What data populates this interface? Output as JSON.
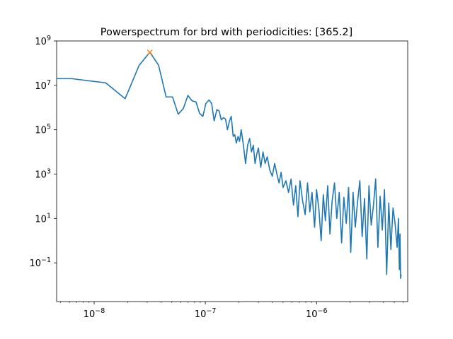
{
  "chart_data": {
    "type": "line",
    "title": "Powerspectrum for brd with periodicities: [365.2]",
    "xlabel": "",
    "ylabel": "",
    "x_scale": "log",
    "y_scale": "log",
    "xlim": [
      4.6e-09,
      6.6e-06
    ],
    "ylim": [
      0.0018,
      1000000000.0
    ],
    "grid": false,
    "x_ticks": [
      {
        "value": 1e-08,
        "base": "10",
        "exp": "−8"
      },
      {
        "value": 1e-07,
        "base": "10",
        "exp": "−7"
      },
      {
        "value": 1e-06,
        "base": "10",
        "exp": "−6"
      }
    ],
    "y_ticks": [
      {
        "value": 1000000000.0,
        "base": "10",
        "exp": "9"
      },
      {
        "value": 10000000.0,
        "base": "10",
        "exp": "7"
      },
      {
        "value": 100000.0,
        "base": "10",
        "exp": "5"
      },
      {
        "value": 1000.0,
        "base": "10",
        "exp": "3"
      },
      {
        "value": 10.0,
        "base": "10",
        "exp": "1"
      },
      {
        "value": 0.1,
        "base": "10",
        "exp": "−1"
      }
    ],
    "series": [
      {
        "color": "#1f77b4",
        "x": [
          4.6e-09,
          6.3e-09,
          1.27e-08,
          1.9e-08,
          2.54e-08,
          3.17e-08,
          3.8e-08,
          4.44e-08,
          5.07e-08,
          5.7e-08,
          6.34e-08,
          6.97e-08,
          7.6e-08,
          8.24e-08,
          8.87e-08,
          9.5e-08,
          1.01e-07,
          1.08e-07,
          1.14e-07,
          1.2e-07,
          1.27e-07,
          1.33e-07,
          1.39e-07,
          1.46e-07,
          1.52e-07,
          1.58e-07,
          1.65e-07,
          1.71e-07,
          1.78e-07,
          1.84e-07,
          1.9e-07,
          1.97e-07,
          2.03e-07,
          2.1e-07,
          2.2e-07,
          2.3e-07,
          2.4e-07,
          2.5e-07,
          2.6e-07,
          2.7e-07,
          2.8e-07,
          2.9e-07,
          3e-07,
          3.15e-07,
          3.3e-07,
          3.45e-07,
          3.6e-07,
          3.8e-07,
          4e-07,
          4.2e-07,
          4.4e-07,
          4.6e-07,
          4.8e-07,
          5e-07,
          5.3e-07,
          5.6e-07,
          5.9e-07,
          6.2e-07,
          6.5e-07,
          6.8e-07,
          7.1e-07,
          7.5e-07,
          7.9e-07,
          8.3e-07,
          8.7e-07,
          9.1e-07,
          9.6e-07,
          1e-06,
          1.05e-06,
          1.1e-06,
          1.15e-06,
          1.2e-06,
          1.26e-06,
          1.32e-06,
          1.38e-06,
          1.45e-06,
          1.52e-06,
          1.6e-06,
          1.68e-06,
          1.76e-06,
          1.85e-06,
          1.94e-06,
          2.03e-06,
          2.13e-06,
          2.23e-06,
          2.34e-06,
          2.45e-06,
          2.57e-06,
          2.7e-06,
          2.83e-06,
          2.96e-06,
          3.1e-06,
          3.25e-06,
          3.4e-06,
          3.56e-06,
          3.73e-06,
          3.9e-06,
          4.08e-06,
          4.27e-06,
          4.46e-06,
          4.66e-06,
          4.87e-06,
          5.08e-06,
          5.3e-06,
          5.45e-06,
          5.55e-06,
          5.63e-06,
          5.7e-06,
          5.76e-06
        ],
        "y": [
          20000000.0,
          20000000.0,
          13000000.0,
          2500000.0,
          80000000.0,
          310000000.0,
          80000000.0,
          3000000.0,
          3000000.0,
          500000.0,
          900000.0,
          3500000.0,
          2000000.0,
          1800000.0,
          550000.0,
          400000.0,
          1500000.0,
          2200000.0,
          1500000.0,
          250000.0,
          800000.0,
          700000.0,
          280000.0,
          350000.0,
          300000.0,
          100000.0,
          250000.0,
          400000.0,
          50000.0,
          60000.0,
          25000.0,
          50000.0,
          30000.0,
          100000.0,
          20000.0,
          3000.0,
          20000.0,
          40000.0,
          10000.0,
          20000.0,
          3000.0,
          8000.0,
          15000.0,
          2000.0,
          10000.0,
          3000.0,
          6000.0,
          1500.0,
          800.0,
          3000.0,
          1000.0,
          400.0,
          1200.0,
          250.0,
          500.0,
          150.0,
          600.0,
          40,
          300,
          12,
          500,
          60,
          15,
          400,
          20,
          150,
          4,
          200,
          25,
          1,
          120,
          8,
          300,
          2,
          60,
          400,
          10,
          150,
          0.8,
          90,
          6,
          250,
          0.3,
          150,
          4,
          60,
          500,
          1.5,
          80,
          0.15,
          300,
          5,
          40,
          600,
          0.5,
          100,
          3,
          200,
          0.03,
          50,
          0.4,
          30,
          6,
          0.5,
          10,
          0.05,
          2,
          0.02,
          0.03
        ]
      },
      {
        "color": "#ff7f0e",
        "marker": "x",
        "x": [
          3.17e-08
        ],
        "y": [
          310000000.0
        ]
      }
    ]
  }
}
